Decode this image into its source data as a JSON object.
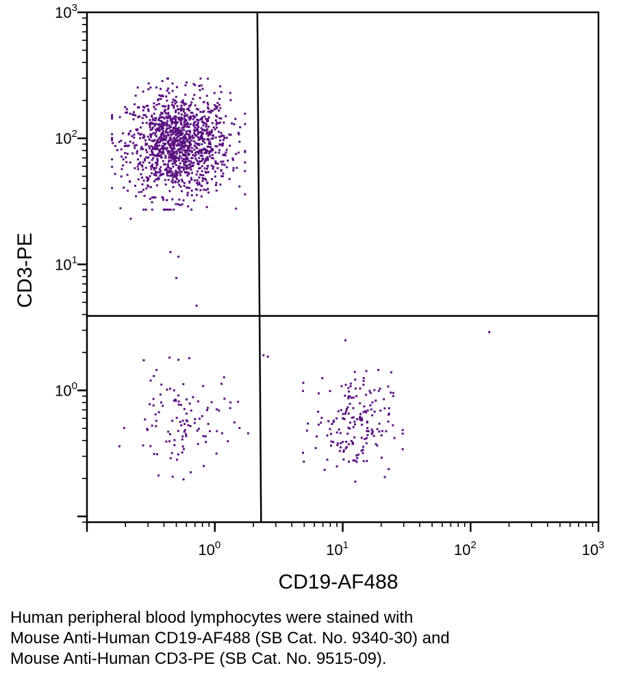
{
  "chart_data": {
    "type": "scatter",
    "xlabel": "CD19-AF488",
    "ylabel": "CD3-PE",
    "x_scale": "log",
    "y_scale": "log",
    "xlim": [
      0.1,
      1000
    ],
    "ylim": [
      0.09,
      1000
    ],
    "x_ticks": [
      {
        "value": 1,
        "base": "10",
        "exp": "0"
      },
      {
        "value": 10,
        "base": "10",
        "exp": "1"
      },
      {
        "value": 100,
        "base": "10",
        "exp": "2"
      },
      {
        "value": 1000,
        "base": "10",
        "exp": "3"
      }
    ],
    "y_ticks": [
      {
        "value": 1,
        "base": "10",
        "exp": "0"
      },
      {
        "value": 10,
        "base": "10",
        "exp": "1"
      },
      {
        "value": 100,
        "base": "10",
        "exp": "2"
      },
      {
        "value": 1000,
        "base": "10",
        "exp": "3"
      }
    ],
    "gates": {
      "x_threshold_top": 2.15,
      "x_threshold_bottom": 2.3,
      "y_threshold": 3.9
    },
    "point_color": "#5a1080",
    "populations": [
      {
        "x_center": 0.52,
        "y_center": 90,
        "x_spread_log": 0.2,
        "y_spread_log": 0.2,
        "count": 1300
      },
      {
        "x_center": 0.55,
        "y_center": 0.55,
        "x_spread_log": 0.2,
        "y_spread_log": 0.2,
        "count": 110
      },
      {
        "x_center": 12,
        "y_center": 0.55,
        "x_spread_log": 0.15,
        "y_spread_log": 0.2,
        "count": 180
      }
    ],
    "outliers": [
      [
        0.5,
        7.8
      ],
      [
        0.45,
        12.5
      ],
      [
        0.52,
        11.5
      ],
      [
        0.72,
        4.7
      ],
      [
        0.22,
        23
      ],
      [
        140,
        2.9
      ],
      [
        10.5,
        2.5
      ],
      [
        2.4,
        1.9
      ],
      [
        2.6,
        1.85
      ],
      [
        0.52,
        1.75
      ],
      [
        0.35,
        1.45
      ]
    ]
  },
  "caption": {
    "lines": [
      "Human peripheral blood lymphocytes were stained with",
      "Mouse Anti-Human CD19-AF488 (SB Cat. No. 9340-30) and",
      "Mouse Anti-Human CD3-PE (SB Cat. No. 9515-09)."
    ]
  }
}
